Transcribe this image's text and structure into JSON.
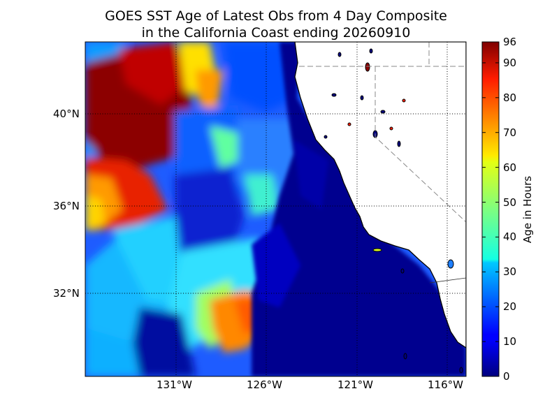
{
  "title_line1": "GOES SST Age of Latest Obs from 4 Day Composite",
  "title_line2": "in the California Coast ending 20260910",
  "map": {
    "lon_ticks": [
      "131°W",
      "126°W",
      "121°W",
      "116°W"
    ],
    "lat_ticks": [
      "40°N",
      "36°N",
      "32°N"
    ],
    "colors": {
      "land": "#ffffff",
      "coastline": "#000000",
      "graticule": "#000000",
      "borders": "#888888"
    }
  },
  "colorbar": {
    "label": "Age in Hours",
    "min": 0,
    "max": 96,
    "colormap": "jet",
    "tick_labels": [
      "96",
      "90",
      "80",
      "70",
      "60",
      "50",
      "40",
      "30",
      "20",
      "10",
      "0"
    ],
    "tick_values": [
      96,
      90,
      80,
      70,
      60,
      50,
      40,
      30,
      20,
      10,
      0
    ]
  }
}
